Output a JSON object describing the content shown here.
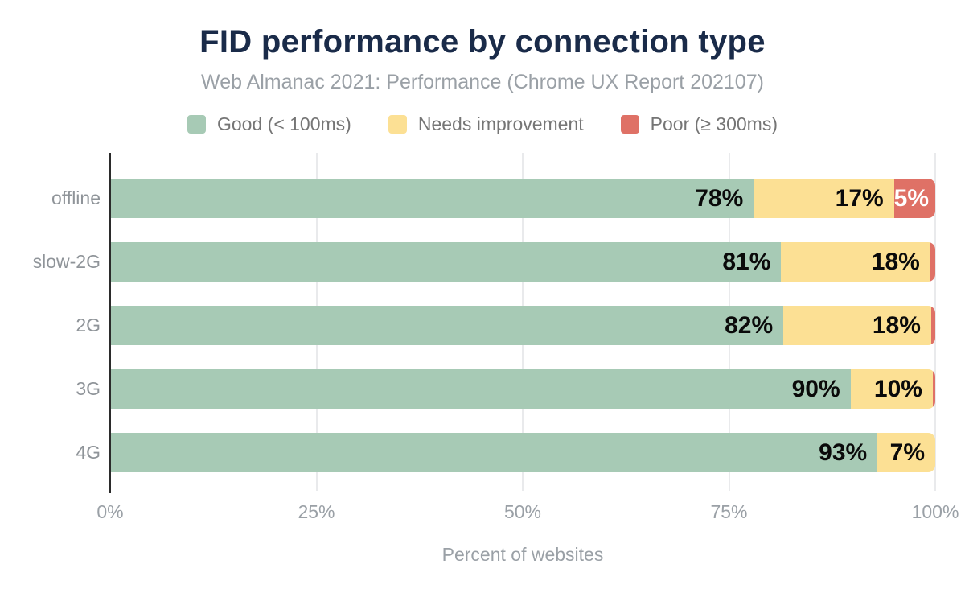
{
  "header": {
    "title": "FID performance by connection type",
    "subtitle": "Web Almanac 2021: Performance (Chrome UX Report 202107)"
  },
  "legend": {
    "items": [
      {
        "label": "Good (< 100ms)",
        "color": "#a7cab5"
      },
      {
        "label": "Needs improvement",
        "color": "#fce094"
      },
      {
        "label": "Poor (≥ 300ms)",
        "color": "#df7166"
      }
    ]
  },
  "chart_data": {
    "type": "bar",
    "orientation": "horizontal",
    "stacked": true,
    "title": "FID performance by connection type",
    "subtitle": "Web Almanac 2021: Performance (Chrome UX Report 202107)",
    "xlabel": "Percent of websites",
    "ylabel": "",
    "xlim": [
      0,
      100
    ],
    "grid": "vertical",
    "legend_position": "top",
    "x_ticks": [
      {
        "label": "0%",
        "pct": 0
      },
      {
        "label": "25%",
        "pct": 25
      },
      {
        "label": "50%",
        "pct": 50
      },
      {
        "label": "75%",
        "pct": 75
      },
      {
        "label": "100%",
        "pct": 100
      }
    ],
    "gridline_pcts": [
      25,
      50,
      75,
      100
    ],
    "categories": [
      "offline",
      "slow-2G",
      "2G",
      "3G",
      "4G"
    ],
    "series": [
      {
        "name": "Good (< 100ms)",
        "color": "#a7cab5",
        "label_color": "#0a0a0a",
        "values": [
          78,
          81,
          82,
          90,
          93
        ],
        "labels": [
          "78%",
          "81%",
          "82%",
          "90%",
          "93%"
        ]
      },
      {
        "name": "Needs improvement",
        "color": "#fce094",
        "label_color": "#0a0a0a",
        "values": [
          17,
          18,
          18,
          10,
          7
        ],
        "labels": [
          "17%",
          "18%",
          "18%",
          "10%",
          "7%"
        ]
      },
      {
        "name": "Poor (≥ 300ms)",
        "color": "#df7166",
        "label_color": "#ffffff",
        "values": [
          5,
          0.6,
          0.5,
          0.3,
          0
        ],
        "labels": [
          "5%",
          "",
          "",
          "",
          ""
        ]
      }
    ]
  },
  "colors": {
    "title": "#1a2b49",
    "subtitle": "#9aa0a6",
    "legend_text": "#757575",
    "axis_text": "#9aa0a6",
    "category_text": "#8f9499",
    "axis_line": "#2b2b2b",
    "gridline": "#e9eaec",
    "background": "#ffffff"
  }
}
